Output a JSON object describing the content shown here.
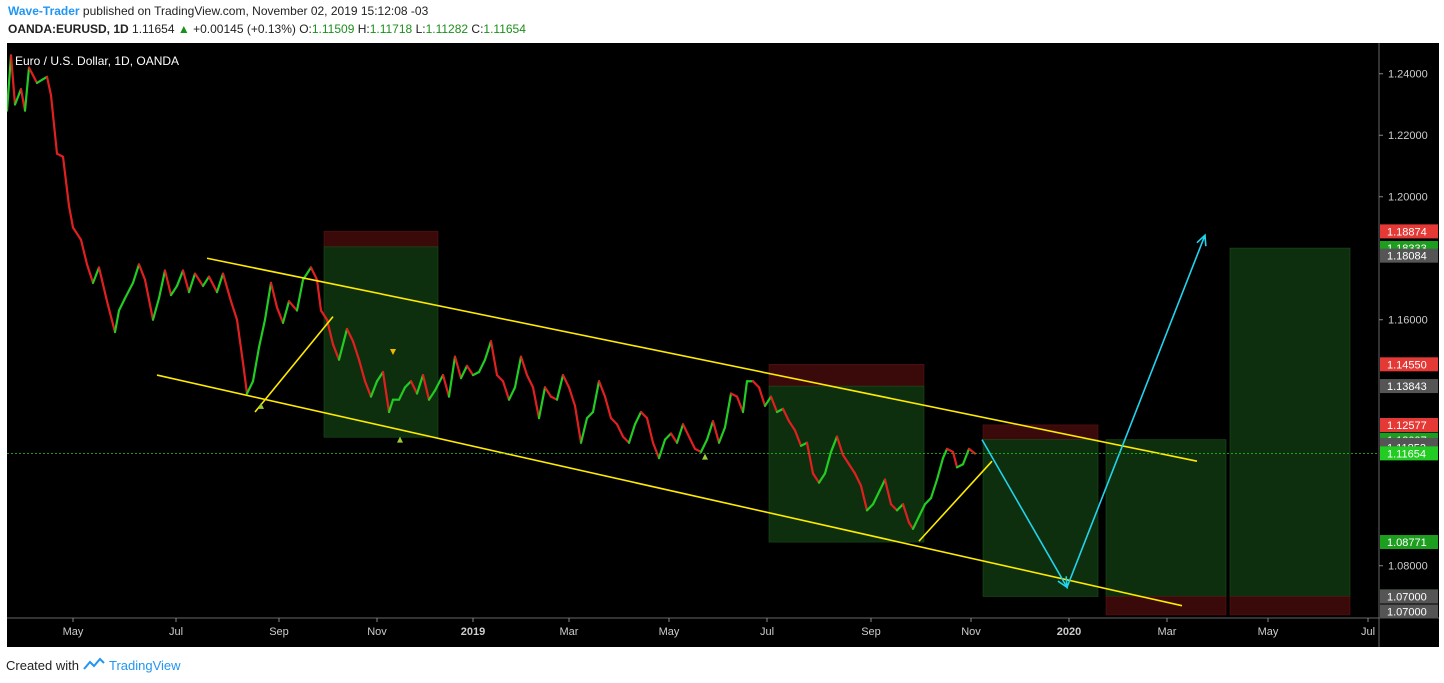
{
  "header": {
    "author": "Wave-Trader",
    "published_text": " published on TradingView.com, November 02, 2019 15:12:08 -03",
    "symbol": "OANDA:EURUSD, 1D",
    "last": "1.11654",
    "change": "+0.00145 (+0.13%)",
    "o_label": "O:",
    "o_val": "1.11509",
    "h_label": "H:",
    "h_val": "1.11718",
    "l_label": "L:",
    "l_val": "1.11282",
    "c_label": "C:",
    "c_val": "1.11654"
  },
  "footer": {
    "created_text": "Created with",
    "brand": "TradingView"
  },
  "colors": {
    "bull": "#22cc22",
    "bear": "#e02020",
    "trendline": "#ffea00",
    "arrow": "#22d3ee",
    "target_zone": "#0d2f0d",
    "stop_zone": "#3a0a0a"
  },
  "chart_data": {
    "type": "line",
    "title": "Euro / U.S. Dollar, 1D, OANDA",
    "xlabel": "",
    "ylabel": "",
    "x_ticks": [
      "May",
      "Jul",
      "Sep",
      "Nov",
      "2019",
      "Mar",
      "May",
      "Jul",
      "Sep",
      "Nov",
      "2020",
      "Mar",
      "May",
      "Jul"
    ],
    "y_ticks": [
      "1.24000",
      "1.22000",
      "1.20000",
      "1.16000",
      "1.08000"
    ],
    "ylim": [
      1.063,
      1.25
    ],
    "price_tags": [
      {
        "label": "1.18874",
        "value": 1.18874,
        "color": "#e53935"
      },
      {
        "label": "1.18333",
        "value": 1.18333,
        "color": "#1e9e1e"
      },
      {
        "label": "1.18084",
        "value": 1.18084,
        "color": "#555555"
      },
      {
        "label": "1.14550",
        "value": 1.1455,
        "color": "#e53935"
      },
      {
        "label": "1.13843",
        "value": 1.13843,
        "color": "#555555"
      },
      {
        "label": "1.12577",
        "value": 1.12577,
        "color": "#e53935"
      },
      {
        "label": "1.12097",
        "value": 1.12097,
        "color": "#1e9e1e"
      },
      {
        "label": "1.11930",
        "value": 1.1193,
        "color": "#555555"
      },
      {
        "label": "1.11853",
        "value": 1.11853,
        "color": "#555555"
      },
      {
        "label": "1.11654",
        "value": 1.11654,
        "color": "#22cc22"
      },
      {
        "label": "1.08771",
        "value": 1.08771,
        "color": "#1e9e1e"
      },
      {
        "label": "1.07003",
        "value": 1.07003,
        "color": "#1e9e1e"
      },
      {
        "label": "1.07000",
        "value": 1.07,
        "color": "#555555"
      },
      {
        "label": "1.07000",
        "value": 1.07,
        "color": "#555555"
      }
    ],
    "current_price": 1.11654,
    "series": [
      {
        "points": [
          [
            0,
            1.228
          ],
          [
            4,
            1.246
          ],
          [
            8,
            1.23
          ],
          [
            14,
            1.235
          ],
          [
            18,
            1.228
          ],
          [
            22,
            1.242
          ],
          [
            30,
            1.237
          ],
          [
            40,
            1.239
          ],
          [
            44,
            1.233
          ],
          [
            50,
            1.214
          ],
          [
            56,
            1.213
          ],
          [
            62,
            1.197
          ],
          [
            66,
            1.19
          ],
          [
            74,
            1.186
          ],
          [
            80,
            1.178
          ],
          [
            86,
            1.172
          ],
          [
            92,
            1.177
          ],
          [
            100,
            1.166
          ],
          [
            108,
            1.156
          ],
          [
            112,
            1.163
          ],
          [
            118,
            1.167
          ],
          [
            126,
            1.172
          ],
          [
            132,
            1.178
          ],
          [
            138,
            1.173
          ],
          [
            146,
            1.16
          ],
          [
            152,
            1.167
          ],
          [
            158,
            1.176
          ],
          [
            164,
            1.168
          ],
          [
            170,
            1.171
          ],
          [
            176,
            1.176
          ],
          [
            182,
            1.169
          ],
          [
            188,
            1.175
          ],
          [
            196,
            1.171
          ],
          [
            202,
            1.174
          ],
          [
            210,
            1.169
          ],
          [
            216,
            1.175
          ],
          [
            224,
            1.166
          ],
          [
            230,
            1.16
          ],
          [
            236,
            1.146
          ],
          [
            240,
            1.136
          ],
          [
            246,
            1.14
          ],
          [
            252,
            1.151
          ],
          [
            258,
            1.16
          ],
          [
            264,
            1.172
          ],
          [
            270,
            1.164
          ],
          [
            276,
            1.159
          ],
          [
            282,
            1.166
          ],
          [
            290,
            1.163
          ],
          [
            296,
            1.173
          ],
          [
            304,
            1.177
          ],
          [
            310,
            1.173
          ],
          [
            314,
            1.163
          ],
          [
            320,
            1.16
          ],
          [
            326,
            1.152
          ],
          [
            332,
            1.147
          ],
          [
            340,
            1.157
          ],
          [
            346,
            1.153
          ],
          [
            352,
            1.147
          ],
          [
            358,
            1.14
          ],
          [
            364,
            1.135
          ],
          [
            370,
            1.14
          ],
          [
            376,
            1.143
          ],
          [
            382,
            1.13
          ],
          [
            386,
            1.134
          ],
          [
            392,
            1.134
          ],
          [
            398,
            1.138
          ],
          [
            404,
            1.14
          ],
          [
            410,
            1.136
          ],
          [
            416,
            1.142
          ],
          [
            422,
            1.134
          ],
          [
            428,
            1.137
          ],
          [
            436,
            1.142
          ],
          [
            442,
            1.135
          ],
          [
            448,
            1.148
          ],
          [
            454,
            1.141
          ],
          [
            460,
            1.145
          ],
          [
            466,
            1.142
          ],
          [
            472,
            1.143
          ],
          [
            478,
            1.147
          ],
          [
            484,
            1.153
          ],
          [
            490,
            1.142
          ],
          [
            496,
            1.14
          ],
          [
            502,
            1.134
          ],
          [
            508,
            1.138
          ],
          [
            514,
            1.148
          ],
          [
            520,
            1.142
          ],
          [
            526,
            1.138
          ],
          [
            532,
            1.128
          ],
          [
            538,
            1.138
          ],
          [
            544,
            1.135
          ],
          [
            550,
            1.134
          ],
          [
            556,
            1.142
          ],
          [
            562,
            1.138
          ],
          [
            568,
            1.132
          ],
          [
            574,
            1.12
          ],
          [
            580,
            1.128
          ],
          [
            586,
            1.13
          ],
          [
            592,
            1.14
          ],
          [
            598,
            1.135
          ],
          [
            604,
            1.128
          ],
          [
            610,
            1.126
          ],
          [
            616,
            1.122
          ],
          [
            622,
            1.12
          ],
          [
            628,
            1.126
          ],
          [
            634,
            1.13
          ],
          [
            640,
            1.128
          ],
          [
            646,
            1.12
          ],
          [
            652,
            1.115
          ],
          [
            658,
            1.121
          ],
          [
            664,
            1.123
          ],
          [
            670,
            1.12
          ],
          [
            676,
            1.126
          ],
          [
            682,
            1.122
          ],
          [
            688,
            1.118
          ],
          [
            694,
            1.117
          ],
          [
            700,
            1.121
          ],
          [
            706,
            1.127
          ],
          [
            712,
            1.12
          ],
          [
            718,
            1.125
          ],
          [
            724,
            1.136
          ],
          [
            730,
            1.135
          ],
          [
            736,
            1.13
          ],
          [
            740,
            1.14
          ],
          [
            746,
            1.14
          ],
          [
            752,
            1.138
          ],
          [
            758,
            1.132
          ],
          [
            764,
            1.135
          ],
          [
            770,
            1.13
          ],
          [
            776,
            1.131
          ],
          [
            782,
            1.127
          ],
          [
            788,
            1.124
          ],
          [
            794,
            1.119
          ],
          [
            800,
            1.12
          ],
          [
            806,
            1.11
          ],
          [
            812,
            1.107
          ],
          [
            818,
            1.11
          ],
          [
            824,
            1.117
          ],
          [
            830,
            1.122
          ],
          [
            836,
            1.116
          ],
          [
            842,
            1.113
          ],
          [
            848,
            1.11
          ],
          [
            854,
            1.106
          ],
          [
            860,
            1.098
          ],
          [
            866,
            1.1
          ],
          [
            872,
            1.104
          ],
          [
            878,
            1.108
          ],
          [
            884,
            1.1
          ],
          [
            890,
            1.098
          ],
          [
            896,
            1.1
          ],
          [
            902,
            1.094
          ],
          [
            906,
            1.092
          ],
          [
            912,
            1.096
          ],
          [
            918,
            1.1
          ],
          [
            924,
            1.102
          ],
          [
            930,
            1.108
          ],
          [
            936,
            1.115
          ],
          [
            940,
            1.118
          ],
          [
            946,
            1.117
          ],
          [
            950,
            1.112
          ],
          [
            956,
            1.113
          ],
          [
            962,
            1.118
          ],
          [
            968,
            1.1165
          ]
        ]
      }
    ],
    "annotations": {
      "channel_upper": [
        [
          200,
          1.18
        ],
        [
          1190,
          1.114
        ]
      ],
      "channel_lower": [
        [
          150,
          1.142
        ],
        [
          1175,
          1.067
        ]
      ],
      "wedge1": [
        [
          248,
          1.13
        ],
        [
          326,
          1.161
        ]
      ],
      "wedge2": [
        [
          912,
          1.088
        ],
        [
          985,
          1.114
        ]
      ],
      "projection": [
        [
          975,
          1.121
        ],
        [
          1060,
          1.073
        ],
        [
          1198,
          1.1875
        ]
      ],
      "zones": [
        {
          "kind": "stop",
          "x": [
            317,
            431
          ],
          "y": [
            1.1837,
            1.1888
          ]
        },
        {
          "kind": "target",
          "x": [
            317,
            431
          ],
          "y": [
            1.1218,
            1.1837
          ]
        },
        {
          "kind": "stop",
          "x": [
            762,
            917
          ],
          "y": [
            1.1384,
            1.1455
          ]
        },
        {
          "kind": "target",
          "x": [
            762,
            917
          ],
          "y": [
            1.0877,
            1.1384
          ]
        },
        {
          "kind": "stop",
          "x": [
            976,
            1091
          ],
          "y": [
            1.121,
            1.1258
          ]
        },
        {
          "kind": "target",
          "x": [
            976,
            1091
          ],
          "y": [
            1.07,
            1.121
          ]
        },
        {
          "kind": "target",
          "x": [
            1099,
            1219
          ],
          "y": [
            1.07,
            1.121
          ]
        },
        {
          "kind": "stop",
          "x": [
            1099,
            1219
          ],
          "y": [
            1.064,
            1.07
          ]
        },
        {
          "kind": "target",
          "x": [
            1223,
            1343
          ],
          "y": [
            1.07,
            1.1833
          ]
        },
        {
          "kind": "stop",
          "x": [
            1223,
            1343
          ],
          "y": [
            1.064,
            1.07
          ]
        }
      ]
    }
  }
}
